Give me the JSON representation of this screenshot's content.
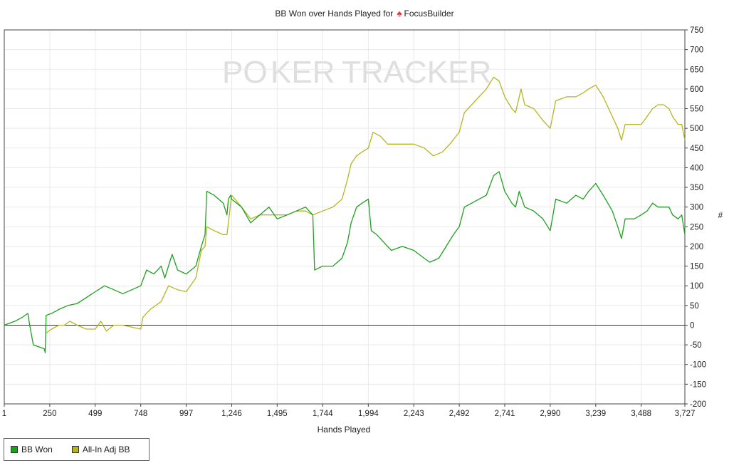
{
  "chart_data": {
    "type": "line",
    "title_prefix": "BB Won over Hands Played for",
    "title_icon": "spade-icon",
    "player": "FocusBuilder",
    "watermark": [
      "PO",
      "KER",
      "TRACKER"
    ],
    "xlabel": "Hands Played",
    "ylabel": "#",
    "xlim": [
      1,
      3727
    ],
    "ylim": [
      -200,
      750
    ],
    "x_ticks": [
      1,
      250,
      499,
      748,
      997,
      1246,
      1495,
      1744,
      1994,
      2243,
      2492,
      2741,
      2990,
      3239,
      3488,
      3727
    ],
    "x_tick_labels": [
      "1",
      "250",
      "499",
      "748",
      "997",
      "1,246",
      "1,495",
      "1,744",
      "1,994",
      "2,243",
      "2,492",
      "2,741",
      "2,990",
      "3,239",
      "3,488",
      "3,727"
    ],
    "y_ticks": [
      -200,
      -150,
      -100,
      -50,
      0,
      50,
      100,
      150,
      200,
      250,
      300,
      350,
      400,
      450,
      500,
      550,
      600,
      650,
      700,
      750
    ],
    "grid": true,
    "legend_position": "bottom-left",
    "series": [
      {
        "name": "BB Won",
        "color": "#1ea01e",
        "points": [
          [
            1,
            0
          ],
          [
            60,
            10
          ],
          [
            100,
            20
          ],
          [
            130,
            30
          ],
          [
            140,
            0
          ],
          [
            160,
            -50
          ],
          [
            190,
            -55
          ],
          [
            220,
            -60
          ],
          [
            225,
            -70
          ],
          [
            230,
            25
          ],
          [
            260,
            30
          ],
          [
            300,
            40
          ],
          [
            350,
            50
          ],
          [
            400,
            55
          ],
          [
            450,
            70
          ],
          [
            499,
            85
          ],
          [
            550,
            100
          ],
          [
            600,
            90
          ],
          [
            650,
            80
          ],
          [
            700,
            90
          ],
          [
            748,
            100
          ],
          [
            780,
            140
          ],
          [
            820,
            130
          ],
          [
            860,
            150
          ],
          [
            880,
            120
          ],
          [
            920,
            180
          ],
          [
            950,
            140
          ],
          [
            997,
            130
          ],
          [
            1050,
            150
          ],
          [
            1080,
            200
          ],
          [
            1100,
            230
          ],
          [
            1110,
            340
          ],
          [
            1150,
            330
          ],
          [
            1200,
            310
          ],
          [
            1220,
            280
          ],
          [
            1228,
            320
          ],
          [
            1240,
            330
          ],
          [
            1246,
            320
          ],
          [
            1300,
            300
          ],
          [
            1350,
            260
          ],
          [
            1400,
            280
          ],
          [
            1450,
            300
          ],
          [
            1495,
            270
          ],
          [
            1550,
            280
          ],
          [
            1600,
            290
          ],
          [
            1650,
            300
          ],
          [
            1690,
            280
          ],
          [
            1700,
            140
          ],
          [
            1744,
            150
          ],
          [
            1800,
            150
          ],
          [
            1850,
            170
          ],
          [
            1880,
            210
          ],
          [
            1900,
            260
          ],
          [
            1930,
            300
          ],
          [
            1960,
            310
          ],
          [
            1994,
            320
          ],
          [
            2010,
            240
          ],
          [
            2040,
            230
          ],
          [
            2080,
            210
          ],
          [
            2120,
            190
          ],
          [
            2180,
            200
          ],
          [
            2243,
            190
          ],
          [
            2300,
            170
          ],
          [
            2330,
            160
          ],
          [
            2380,
            170
          ],
          [
            2420,
            200
          ],
          [
            2460,
            230
          ],
          [
            2492,
            250
          ],
          [
            2520,
            300
          ],
          [
            2560,
            310
          ],
          [
            2600,
            320
          ],
          [
            2640,
            330
          ],
          [
            2680,
            380
          ],
          [
            2710,
            390
          ],
          [
            2741,
            340
          ],
          [
            2780,
            310
          ],
          [
            2800,
            300
          ],
          [
            2820,
            340
          ],
          [
            2850,
            300
          ],
          [
            2900,
            290
          ],
          [
            2950,
            270
          ],
          [
            2990,
            240
          ],
          [
            3020,
            320
          ],
          [
            3080,
            310
          ],
          [
            3130,
            330
          ],
          [
            3170,
            320
          ],
          [
            3200,
            340
          ],
          [
            3239,
            360
          ],
          [
            3280,
            330
          ],
          [
            3330,
            290
          ],
          [
            3360,
            250
          ],
          [
            3380,
            220
          ],
          [
            3400,
            270
          ],
          [
            3450,
            270
          ],
          [
            3488,
            280
          ],
          [
            3520,
            290
          ],
          [
            3550,
            310
          ],
          [
            3580,
            300
          ],
          [
            3610,
            300
          ],
          [
            3640,
            300
          ],
          [
            3660,
            280
          ],
          [
            3690,
            270
          ],
          [
            3710,
            280
          ],
          [
            3727,
            230
          ]
        ]
      },
      {
        "name": "All-In Adj BB",
        "color": "#b5b522",
        "points": [
          [
            230,
            -20
          ],
          [
            260,
            -10
          ],
          [
            300,
            0
          ],
          [
            330,
            0
          ],
          [
            360,
            10
          ],
          [
            400,
            0
          ],
          [
            450,
            -10
          ],
          [
            499,
            -10
          ],
          [
            530,
            10
          ],
          [
            560,
            -15
          ],
          [
            600,
            0
          ],
          [
            650,
            0
          ],
          [
            700,
            -5
          ],
          [
            748,
            -10
          ],
          [
            760,
            20
          ],
          [
            800,
            40
          ],
          [
            860,
            60
          ],
          [
            900,
            100
          ],
          [
            950,
            90
          ],
          [
            997,
            85
          ],
          [
            1050,
            120
          ],
          [
            1080,
            190
          ],
          [
            1100,
            200
          ],
          [
            1110,
            250
          ],
          [
            1150,
            240
          ],
          [
            1200,
            230
          ],
          [
            1220,
            230
          ],
          [
            1246,
            330
          ],
          [
            1300,
            300
          ],
          [
            1350,
            270
          ],
          [
            1400,
            280
          ],
          [
            1450,
            280
          ],
          [
            1495,
            280
          ],
          [
            1550,
            280
          ],
          [
            1600,
            290
          ],
          [
            1650,
            290
          ],
          [
            1690,
            280
          ],
          [
            1744,
            290
          ],
          [
            1800,
            300
          ],
          [
            1850,
            320
          ],
          [
            1880,
            370
          ],
          [
            1900,
            410
          ],
          [
            1930,
            430
          ],
          [
            1960,
            440
          ],
          [
            1994,
            450
          ],
          [
            2020,
            490
          ],
          [
            2060,
            480
          ],
          [
            2100,
            460
          ],
          [
            2160,
            460
          ],
          [
            2243,
            460
          ],
          [
            2300,
            450
          ],
          [
            2350,
            430
          ],
          [
            2400,
            440
          ],
          [
            2440,
            460
          ],
          [
            2492,
            490
          ],
          [
            2520,
            540
          ],
          [
            2560,
            560
          ],
          [
            2600,
            580
          ],
          [
            2640,
            600
          ],
          [
            2680,
            630
          ],
          [
            2710,
            620
          ],
          [
            2741,
            580
          ],
          [
            2780,
            550
          ],
          [
            2800,
            540
          ],
          [
            2830,
            600
          ],
          [
            2850,
            560
          ],
          [
            2900,
            550
          ],
          [
            2950,
            520
          ],
          [
            2990,
            500
          ],
          [
            3020,
            570
          ],
          [
            3080,
            580
          ],
          [
            3130,
            580
          ],
          [
            3170,
            590
          ],
          [
            3200,
            600
          ],
          [
            3239,
            610
          ],
          [
            3280,
            580
          ],
          [
            3330,
            530
          ],
          [
            3360,
            500
          ],
          [
            3380,
            470
          ],
          [
            3400,
            510
          ],
          [
            3450,
            510
          ],
          [
            3488,
            510
          ],
          [
            3520,
            530
          ],
          [
            3550,
            550
          ],
          [
            3580,
            560
          ],
          [
            3610,
            560
          ],
          [
            3640,
            550
          ],
          [
            3660,
            530
          ],
          [
            3690,
            510
          ],
          [
            3710,
            510
          ],
          [
            3727,
            470
          ]
        ]
      }
    ]
  }
}
